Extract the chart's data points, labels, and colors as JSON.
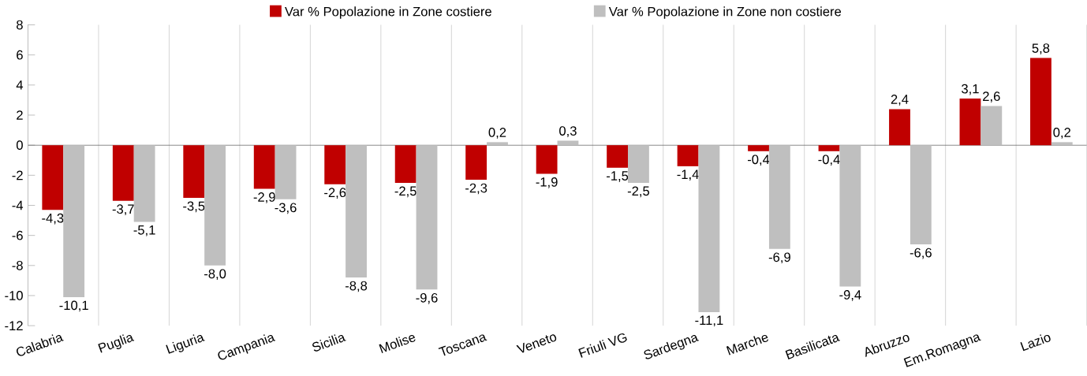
{
  "chart_data": {
    "type": "bar",
    "categories": [
      "Calabria",
      "Puglia",
      "Liguria",
      "Campania",
      "Sicilia",
      "Molise",
      "Toscana",
      "Veneto",
      "Friuli VG",
      "Sardegna",
      "Marche",
      "Basilicata",
      "Abruzzo",
      "Em.Romagna",
      "Lazio"
    ],
    "series": [
      {
        "name": "Var % Popolazione in Zone costiere",
        "color": "#c00000",
        "values": [
          -4.3,
          -3.7,
          -3.5,
          -2.9,
          -2.6,
          -2.5,
          -2.3,
          -1.9,
          -1.5,
          -1.4,
          -0.4,
          -0.4,
          2.4,
          3.1,
          5.8
        ],
        "value_labels": [
          "-4,3",
          "-3,7",
          "-3,5",
          "-2,9",
          "-2,6",
          "-2,5",
          "-2,3",
          "-1,9",
          "-1,5",
          "-1,4",
          "-0,4",
          "-0,4",
          "2,4",
          "3,1",
          "5,8"
        ]
      },
      {
        "name": "Var % Popolazione in Zone non costiere",
        "color": "#bfbfbf",
        "values": [
          -10.1,
          -5.1,
          -8.0,
          -3.6,
          -8.8,
          -9.6,
          0.2,
          0.3,
          -2.5,
          -11.1,
          -6.9,
          -9.4,
          -6.6,
          2.6,
          0.2
        ],
        "value_labels": [
          "-10,1",
          "-5,1",
          "-8,0",
          "-3,6",
          "-8,8",
          "-9,6",
          "0,2",
          "0,3",
          "-2,5",
          "-11,1",
          "-6,9",
          "-9,4",
          "-6,6",
          "2,6",
          "0,2"
        ]
      }
    ],
    "ylim": [
      -12,
      8
    ],
    "yticks": [
      -12,
      -10,
      -8,
      -6,
      -4,
      -2,
      0,
      2,
      4,
      6,
      8
    ],
    "grid": "x",
    "legend": "top"
  }
}
